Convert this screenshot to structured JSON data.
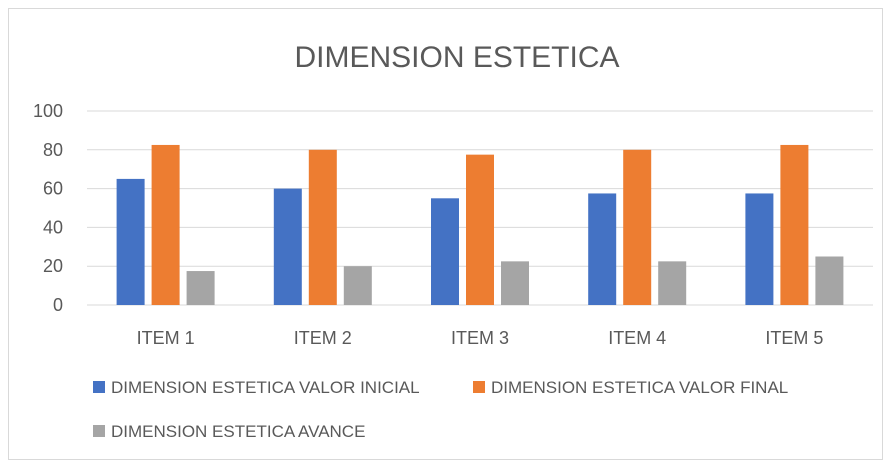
{
  "chart_data": {
    "type": "bar",
    "title": "DIMENSION ESTETICA",
    "categories": [
      "ITEM 1",
      "ITEM 2",
      "ITEM 3",
      "ITEM 4",
      "ITEM 5"
    ],
    "series": [
      {
        "name": "DIMENSION ESTETICA VALOR INICIAL",
        "color": "#4472C4",
        "values": [
          65,
          60,
          55,
          57.5,
          57.5
        ]
      },
      {
        "name": "DIMENSION ESTETICA VALOR FINAL",
        "color": "#ED7D31",
        "values": [
          82.5,
          80,
          77.5,
          80,
          82.5
        ]
      },
      {
        "name": "DIMENSION ESTETICA AVANCE",
        "color": "#A5A5A5",
        "values": [
          17.5,
          20,
          22.5,
          22.5,
          25
        ]
      }
    ],
    "ylim": [
      0,
      100
    ],
    "yticks": [
      "0",
      "20",
      "40",
      "60",
      "80",
      "100"
    ],
    "grid": true,
    "legend_position": "bottom"
  }
}
